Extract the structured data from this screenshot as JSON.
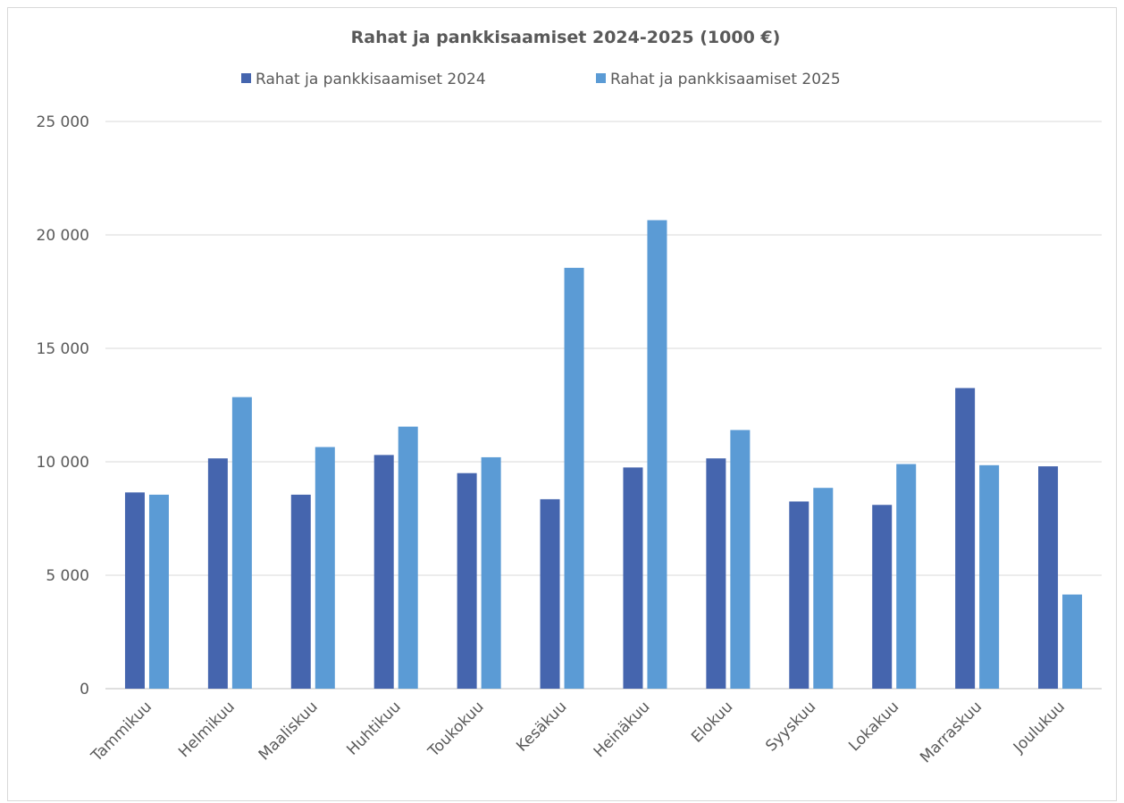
{
  "chart_data": {
    "type": "bar",
    "title": "Rahat ja pankkisaamiset 2024-2025 (1000 €)",
    "categories": [
      "Tammikuu",
      "Helmikuu",
      "Maaliskuu",
      "Huhtikuu",
      "Toukokuu",
      "Kesäkuu",
      "Heinäkuu",
      "Elokuu",
      "Syyskuu",
      "Lokakuu",
      "Marraskuu",
      "Joulukuu"
    ],
    "series": [
      {
        "name": "Rahat ja pankkisaamiset 2024",
        "color": "#4565ae",
        "values": [
          8650,
          10150,
          8550,
          10300,
          9500,
          8350,
          9750,
          10150,
          8250,
          8100,
          13250,
          9800
        ]
      },
      {
        "name": "Rahat ja pankkisaamiset 2025",
        "color": "#5b9bd5",
        "values": [
          8550,
          12850,
          10650,
          11550,
          10200,
          18550,
          20650,
          11400,
          8850,
          9900,
          9850,
          4150
        ]
      }
    ],
    "ylim": [
      0,
      25000
    ],
    "yticks": [
      0,
      5000,
      10000,
      15000,
      20000,
      25000
    ],
    "ytick_labels": [
      "0",
      "5 000",
      "10 000",
      "15 000",
      "20 000",
      "25 000"
    ],
    "grid": true,
    "legend": "top"
  }
}
